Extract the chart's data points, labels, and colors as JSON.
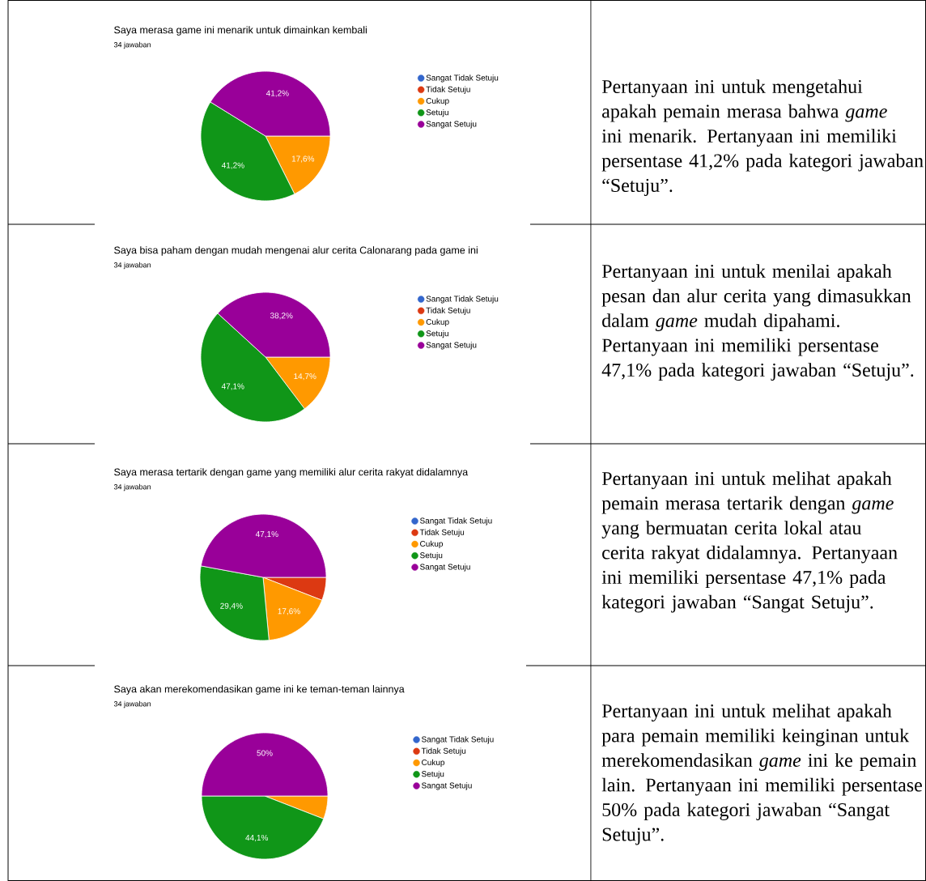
{
  "chart_data": [
    {
      "type": "pie",
      "title": "Saya merasa game ini menarik untuk dimainkan kembali",
      "subtitle": "34 jawaban",
      "categories": [
        "Sangat Tidak Setuju",
        "Tidak Setuju",
        "Cukup",
        "Setuju",
        "Sangat Setuju"
      ],
      "values": [
        0,
        0,
        17.6,
        41.2,
        41.2
      ],
      "value_labels": [
        null,
        null,
        "17,6%",
        "41,2%",
        "41,2%"
      ],
      "colors": [
        "#3366cc",
        "#dc3912",
        "#ff9900",
        "#109618",
        "#990099"
      ],
      "legend": "right"
    },
    {
      "type": "other",
      "annotations": [
        "Pertanyaan ini untuk mengetahui apakah pemain merasa bahwa *game* ini menarik. Pertanyaan ini memiliki persentase 41,2% pada kategori jawaban “Setuju”."
      ]
    },
    {
      "type": "pie",
      "title": "Saya bisa paham dengan mudah mengenai alur cerita Calonarang pada game ini",
      "subtitle": "34 jawaban",
      "categories": [
        "Sangat Tidak Setuju",
        "Tidak Setuju",
        "Cukup",
        "Setuju",
        "Sangat Setuju"
      ],
      "values": [
        0,
        0,
        14.7,
        47.1,
        38.2
      ],
      "value_labels": [
        null,
        null,
        "14,7%",
        "47,1%",
        "38,2%"
      ],
      "colors": [
        "#3366cc",
        "#dc3912",
        "#ff9900",
        "#109618",
        "#990099"
      ],
      "legend": "right"
    },
    {
      "type": "other",
      "annotations": [
        "Pertanyaan ini untuk menilai apakah pesan dan alur cerita yang dimasukkan dalam *game* mudah dipahami. Pertanyaan ini memiliki persentase 47,1% pada kategori jawaban “Setuju”."
      ]
    },
    {
      "type": "pie",
      "title": "Saya merasa tertarik dengan game yang memiliki alur cerita rakyat didalamnya",
      "subtitle": "34 jawaban",
      "categories": [
        "Sangat Tidak Setuju",
        "Tidak Setuju",
        "Cukup",
        "Setuju",
        "Sangat Setuju"
      ],
      "values": [
        0,
        5.9,
        17.6,
        29.4,
        47.1
      ],
      "value_labels": [
        null,
        null,
        "17,6%",
        "29,4%",
        "47,1%"
      ],
      "colors": [
        "#3366cc",
        "#dc3912",
        "#ff9900",
        "#109618",
        "#990099"
      ],
      "legend": "right"
    },
    {
      "type": "other",
      "annotations": [
        "Pertanyaan ini untuk melihat apakah pemain merasa tertarik dengan *game* yang bermuatan cerita lokal atau cerita rakyat didalamnya. Pertanyaan ini memiliki persentase 47,1% pada kategori jawaban “Sangat Setuju”."
      ]
    },
    {
      "type": "pie",
      "title": "Saya akan merekomendasikan game ini ke teman-teman lainnya",
      "subtitle": "34 jawaban",
      "categories": [
        "Sangat Tidak Setuju",
        "Tidak Setuju",
        "Cukup",
        "Setuju",
        "Sangat Setuju"
      ],
      "values": [
        0,
        0,
        5.9,
        44.1,
        50
      ],
      "value_labels": [
        null,
        null,
        null,
        "44,1%",
        "50%"
      ],
      "colors": [
        "#3366cc",
        "#dc3912",
        "#ff9900",
        "#109618",
        "#990099"
      ],
      "legend": "right"
    },
    {
      "type": "other",
      "annotations": [
        "Pertanyaan ini untuk melihat apakah para pemain memiliki keinginan untuk merekomendasikan *game* ini ke pemain lain. Pertanyaan ini memiliki persentase 50% pada kategori jawaban “Sangat Setuju”."
      ]
    }
  ]
}
